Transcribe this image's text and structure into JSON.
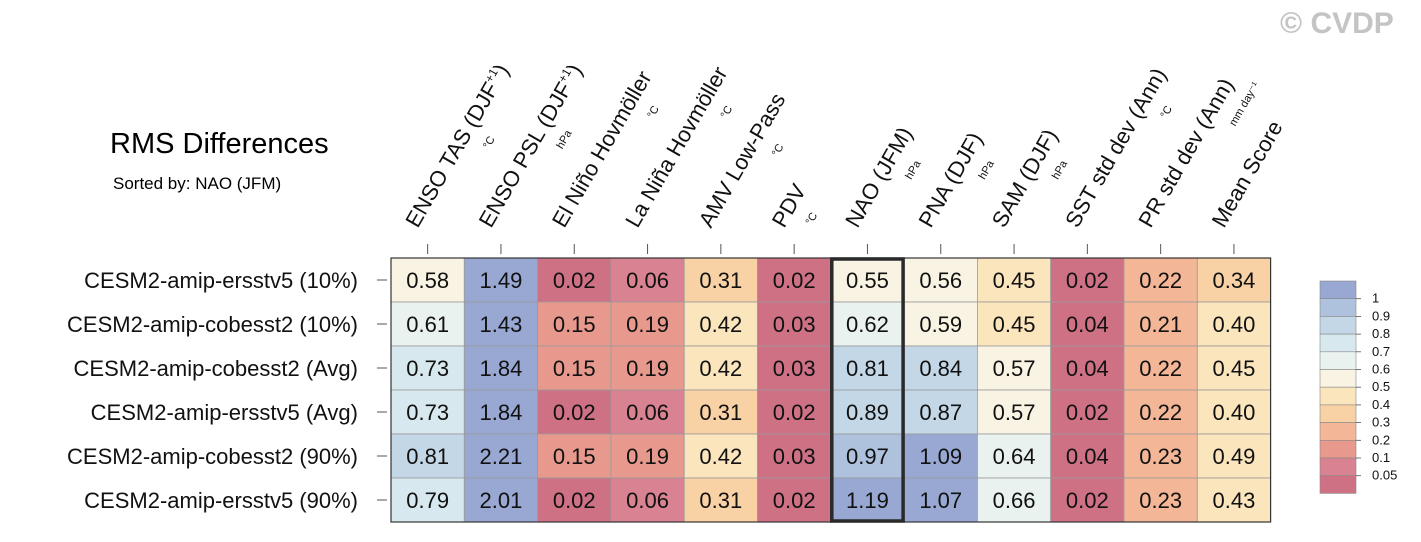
{
  "title": "RMS Differences",
  "subtitle": "Sorted by: NAO (JFM)",
  "watermark": "© CVDP",
  "chart_data": {
    "type": "heatmap",
    "columns": [
      {
        "label": "ENSO TAS (DJF",
        "sup": "+1",
        "close": ")",
        "unit": "°C"
      },
      {
        "label": "ENSO PSL (DJF",
        "sup": "+1",
        "close": ")",
        "unit": "hPa"
      },
      {
        "label": "El Niño Hovmöller",
        "sup": "",
        "close": "",
        "unit": "°C"
      },
      {
        "label": "La Niña Hovmöller",
        "sup": "",
        "close": "",
        "unit": "°C"
      },
      {
        "label": "AMV Low-Pass",
        "sup": "",
        "close": "",
        "unit": "°C"
      },
      {
        "label": "PDV",
        "sup": "",
        "close": "",
        "unit": "°C"
      },
      {
        "label": "NAO (JFM)",
        "sup": "",
        "close": "",
        "unit": "hPa"
      },
      {
        "label": "PNA (DJF)",
        "sup": "",
        "close": "",
        "unit": "hPa"
      },
      {
        "label": "SAM (DJF)",
        "sup": "",
        "close": "",
        "unit": "hPa"
      },
      {
        "label": "SST std dev (Ann)",
        "sup": "",
        "close": "",
        "unit": "°C"
      },
      {
        "label": "PR std dev (Ann)",
        "sup": "",
        "close": "",
        "unit": "mm day⁻¹"
      },
      {
        "label": "Mean Score",
        "sup": "",
        "close": "",
        "unit": ""
      }
    ],
    "rows": [
      "CESM2-amip-ersstv5 (10%)",
      "CESM2-amip-cobesst2 (10%)",
      "CESM2-amip-cobesst2 (Avg)",
      "CESM2-amip-ersstv5 (Avg)",
      "CESM2-amip-cobesst2 (90%)",
      "CESM2-amip-ersstv5 (90%)"
    ],
    "values": [
      [
        "0.58",
        "1.49",
        "0.02",
        "0.06",
        "0.31",
        "0.02",
        "0.55",
        "0.56",
        "0.45",
        "0.02",
        "0.22",
        "0.34"
      ],
      [
        "0.61",
        "1.43",
        "0.15",
        "0.19",
        "0.42",
        "0.03",
        "0.62",
        "0.59",
        "0.45",
        "0.04",
        "0.21",
        "0.40"
      ],
      [
        "0.73",
        "1.84",
        "0.15",
        "0.19",
        "0.42",
        "0.03",
        "0.81",
        "0.84",
        "0.57",
        "0.04",
        "0.22",
        "0.45"
      ],
      [
        "0.73",
        "1.84",
        "0.02",
        "0.06",
        "0.31",
        "0.02",
        "0.89",
        "0.87",
        "0.57",
        "0.02",
        "0.22",
        "0.40"
      ],
      [
        "0.81",
        "2.21",
        "0.15",
        "0.19",
        "0.42",
        "0.03",
        "0.97",
        "1.09",
        "0.64",
        "0.04",
        "0.23",
        "0.49"
      ],
      [
        "0.79",
        "2.01",
        "0.02",
        "0.06",
        "0.31",
        "0.02",
        "1.19",
        "1.07",
        "0.66",
        "0.02",
        "0.23",
        "0.43"
      ]
    ],
    "highlighted_column": "NAO (JFM)",
    "colorbar": {
      "labels": [
        "1",
        "0.9",
        "0.8",
        "0.7",
        "0.6",
        "0.5",
        "0.4",
        "0.3",
        "0.2",
        "0.1",
        "0.05"
      ],
      "colors": [
        "#98a8d3",
        "#aec1dd",
        "#c3d7e6",
        "#d7e9ef",
        "#eaf2ef",
        "#f8f3e2",
        "#fbe5bc",
        "#f8d2a5",
        "#f3b797",
        "#e8998d",
        "#d98291",
        "#cf7185"
      ]
    }
  }
}
